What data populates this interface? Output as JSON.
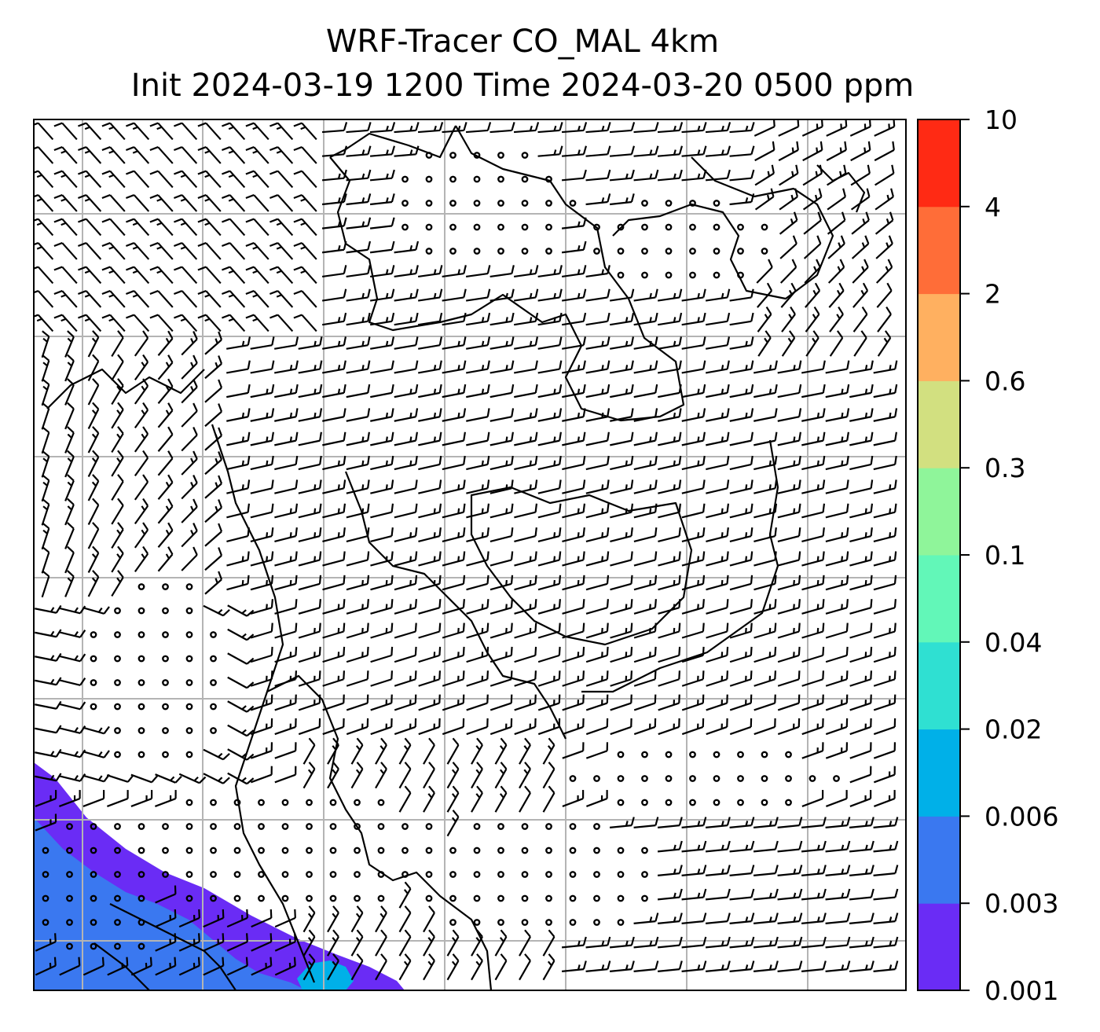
{
  "title": {
    "line1": "WRF-Tracer CO_MAL 4km",
    "line2": "Init 2024-03-19 1200 Time 2024-03-20 0500 ppm"
  },
  "colorbar": {
    "levels": [
      "0.001",
      "0.003",
      "0.006",
      "0.02",
      "0.04",
      "0.1",
      "0.3",
      "0.6",
      "2",
      "4",
      "10"
    ],
    "colors": [
      "#6a2cf5",
      "#3a78f0",
      "#00b0e8",
      "#2fe0d2",
      "#62f7b8",
      "#8ff59a",
      "#d2e080",
      "#ffb060",
      "#ff6d38",
      "#ff2a14"
    ]
  },
  "map": {
    "background": "#ffffff",
    "gridline_color": "#b4b4b4",
    "coastline_color": "#000000",
    "tracer_fill": {
      "lowest_band_color": "#6a2cf5",
      "inner_band_color": "#3a78f0",
      "peak_color": "#00b0e8"
    }
  }
}
